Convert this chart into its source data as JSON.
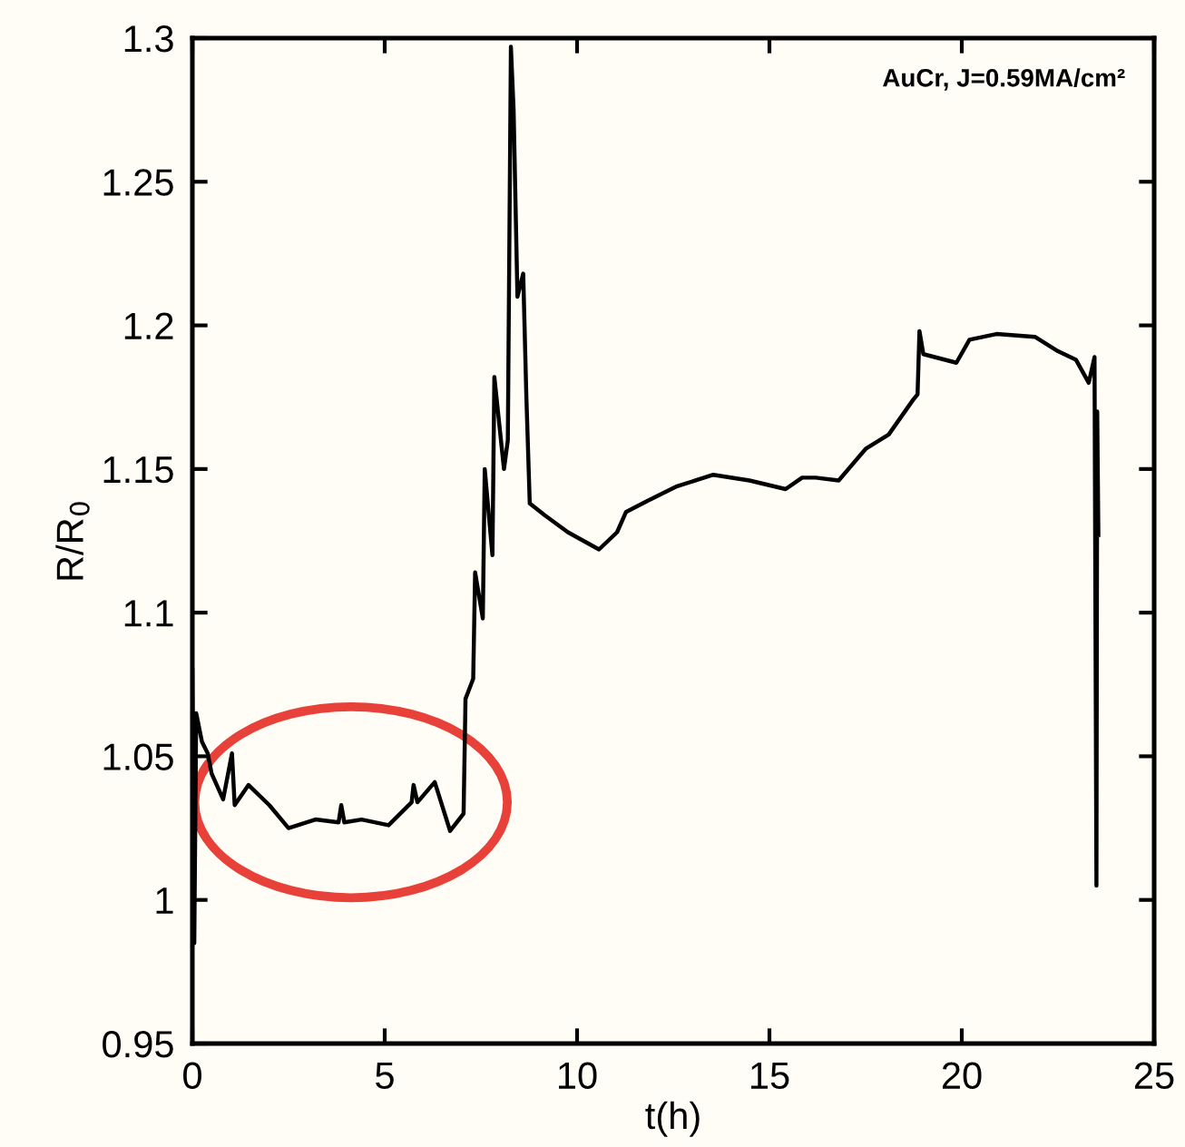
{
  "chart_data": {
    "type": "line",
    "xlabel": "t(h)",
    "ylabel": "R/R$_{0}$",
    "annotations": [
      "AuCr, J=0.59MA/cm²"
    ],
    "xlim": [
      0,
      25
    ],
    "ylim": [
      0.95,
      1.3
    ],
    "xticks": [
      0,
      5,
      10,
      15,
      20,
      25
    ],
    "yticks": [
      0.95,
      1,
      1.05,
      1.1,
      1.15,
      1.2,
      1.25,
      1.3
    ],
    "grid": false,
    "legend": false,
    "marker": "none",
    "line_style": "solid",
    "series": [
      {
        "color": "#000000",
        "x": [
          0,
          0.05,
          0.1,
          0.25,
          0.4,
          0.5,
          0.8,
          1.03,
          1.1,
          1.46,
          2.0,
          2.5,
          3.2,
          3.8,
          3.87,
          3.95,
          4.4,
          5.1,
          5.7,
          5.75,
          5.85,
          6.3,
          6.7,
          7.05,
          7.1,
          7.3,
          7.35,
          7.55,
          7.6,
          7.8,
          7.85,
          8.1,
          8.2,
          8.28,
          8.35,
          8.45,
          8.6,
          8.68,
          8.77,
          9.15,
          9.76,
          10.57,
          11.04,
          11.27,
          11.84,
          12.6,
          13.54,
          14.48,
          15.42,
          15.85,
          16.2,
          16.8,
          17.5,
          18.1,
          18.73,
          18.85,
          18.9,
          19.0,
          19.86,
          20.2,
          20.9,
          21.9,
          22.5,
          22.97,
          23.3,
          23.45,
          23.5,
          23.52,
          23.55
        ],
        "values": [
          1.08,
          0.985,
          1.065,
          1.055,
          1.051,
          1.044,
          1.035,
          1.051,
          1.033,
          1.04,
          1.033,
          1.025,
          1.028,
          1.027,
          1.033,
          1.027,
          1.028,
          1.026,
          1.034,
          1.04,
          1.034,
          1.041,
          1.024,
          1.03,
          1.07,
          1.077,
          1.114,
          1.098,
          1.15,
          1.12,
          1.182,
          1.15,
          1.16,
          1.297,
          1.275,
          1.21,
          1.218,
          1.176,
          1.138,
          1.134,
          1.128,
          1.122,
          1.128,
          1.135,
          1.139,
          1.144,
          1.148,
          1.146,
          1.143,
          1.147,
          1.147,
          1.146,
          1.157,
          1.162,
          1.174,
          1.176,
          1.198,
          1.19,
          1.187,
          1.195,
          1.197,
          1.196,
          1.191,
          1.188,
          1.18,
          1.189,
          1.005,
          1.17,
          1.127
        ]
      }
    ]
  }
}
